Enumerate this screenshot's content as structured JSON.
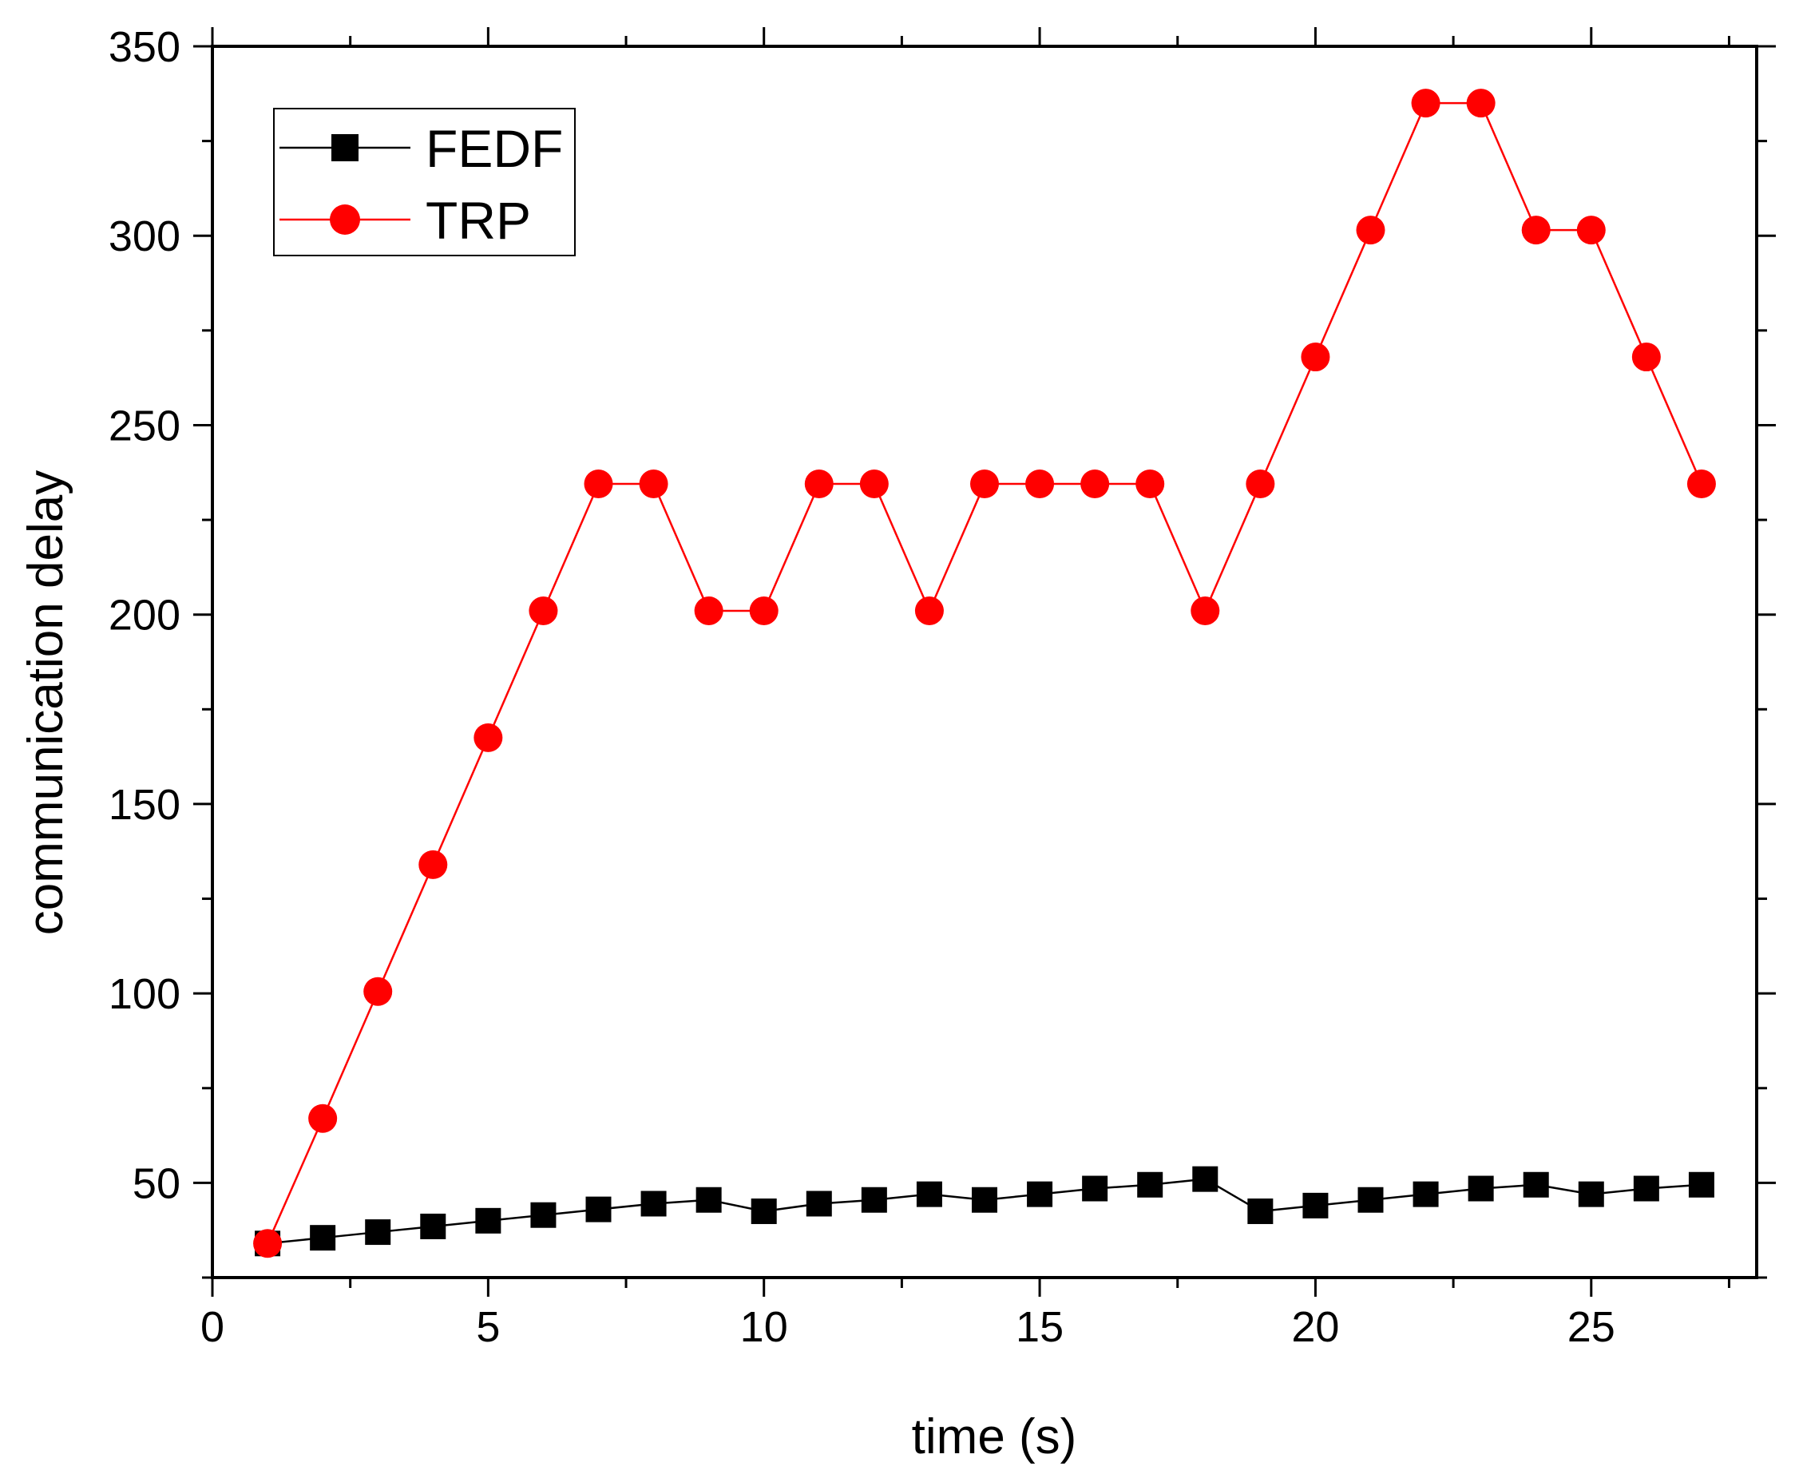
{
  "chart_data": {
    "type": "line",
    "title": "",
    "xlabel": "time (s)",
    "ylabel": "communication delay",
    "xlim": [
      0,
      28
    ],
    "ylim": [
      25,
      350
    ],
    "xticks": [
      0,
      5,
      10,
      15,
      20,
      25
    ],
    "yticks": [
      50,
      100,
      150,
      200,
      250,
      300,
      350
    ],
    "x_minor_step": 2.5,
    "y_minor_step": 25,
    "grid": false,
    "legend_position": "top-left",
    "x": [
      1,
      2,
      3,
      4,
      5,
      6,
      7,
      8,
      9,
      10,
      11,
      12,
      13,
      14,
      15,
      16,
      17,
      18,
      19,
      20,
      21,
      22,
      23,
      24,
      25,
      26,
      27
    ],
    "series": [
      {
        "name": "FEDF",
        "color": "#000000",
        "marker": "square",
        "values": [
          34,
          35.5,
          37,
          38.5,
          40,
          41.5,
          43,
          44.5,
          45.5,
          42.5,
          44.5,
          45.5,
          47,
          45.5,
          47,
          48.5,
          49.5,
          51,
          42.5,
          44,
          45.5,
          47,
          48.5,
          49.5,
          47,
          48.5,
          49.5
        ]
      },
      {
        "name": "TRP",
        "color": "#ff0000",
        "marker": "circle",
        "values": [
          34,
          67,
          100.5,
          134,
          167.5,
          201,
          234.5,
          234.5,
          201,
          201,
          234.5,
          234.5,
          201,
          234.5,
          234.5,
          234.5,
          234.5,
          201,
          234.5,
          268,
          301.5,
          335,
          335,
          301.5,
          301.5,
          268,
          234.5
        ]
      }
    ]
  }
}
